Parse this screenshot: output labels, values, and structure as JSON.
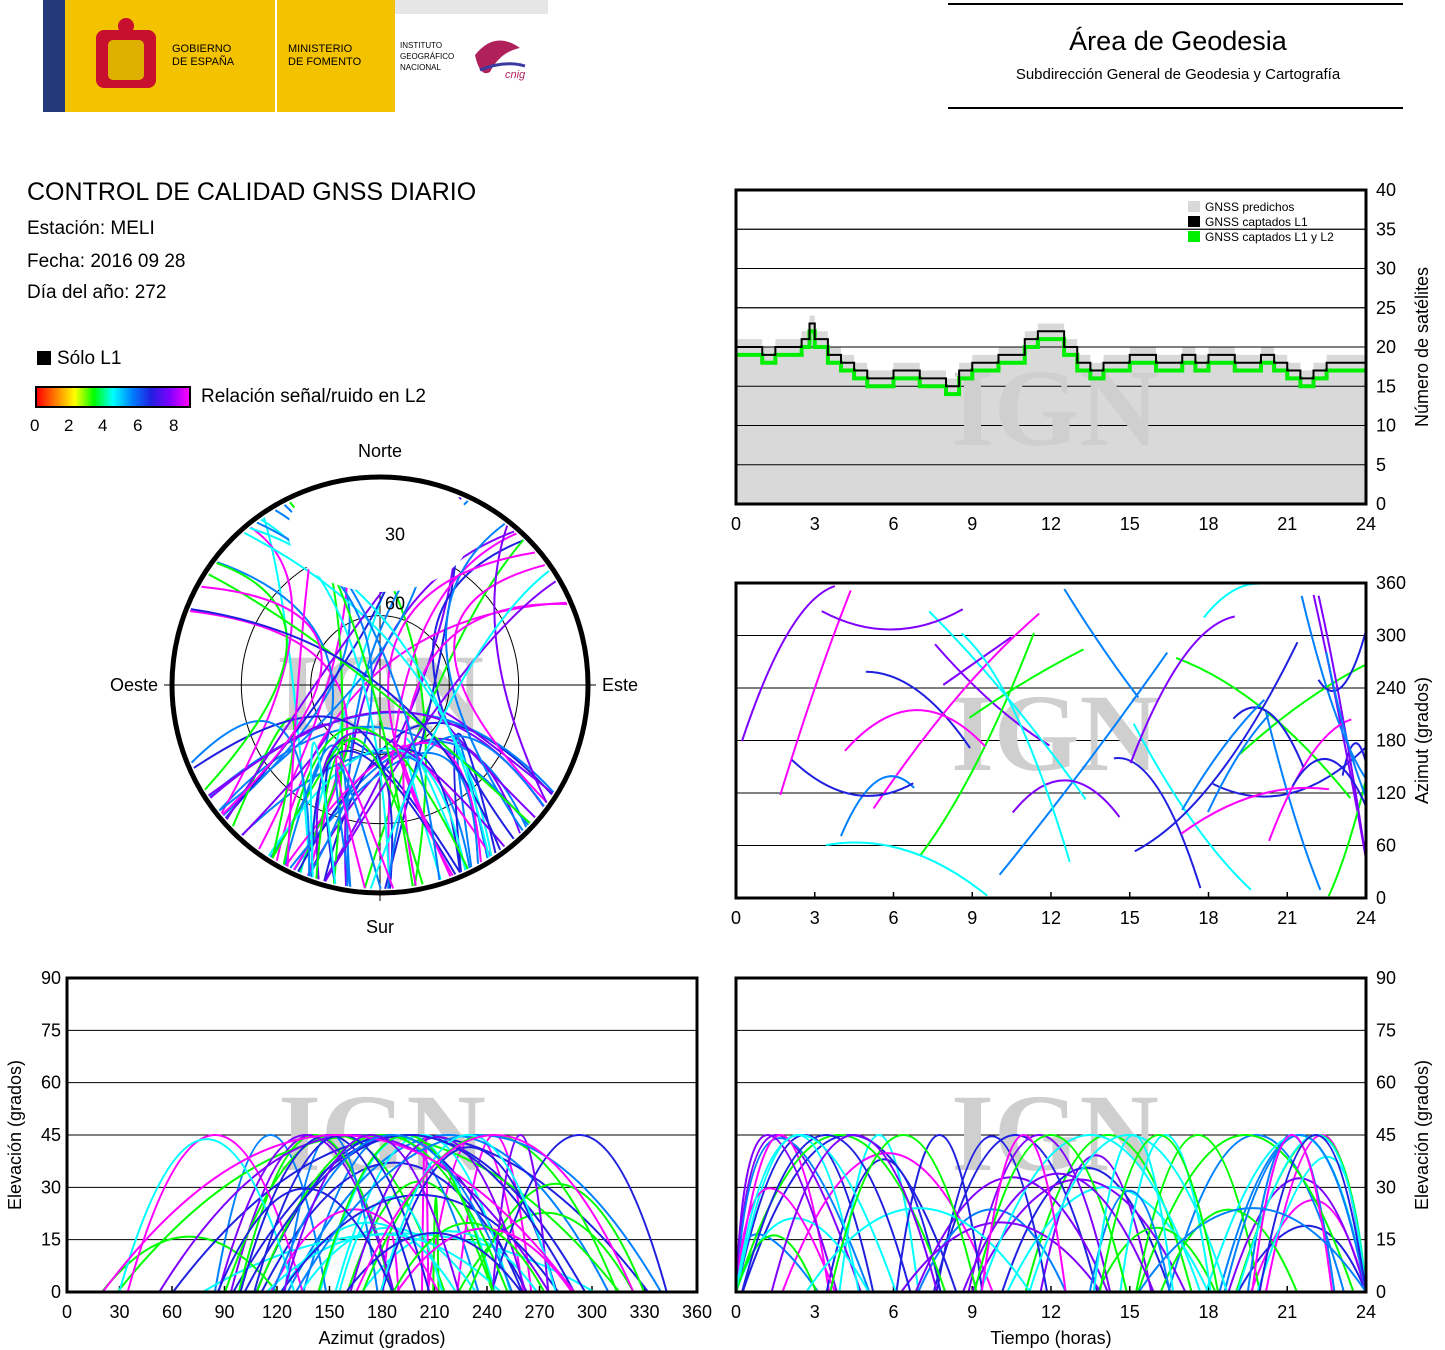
{
  "header": {
    "gov_line1": "GOBIERNO",
    "gov_line2": "DE ESPAÑA",
    "min_line1": "MINISTERIO",
    "min_line2": "DE FOMENTO",
    "ign_line1": "INSTITUTO",
    "ign_line2": "GEOGRÁFICO",
    "ign_line3": "NACIONAL",
    "cnig_logo_text": "cnig",
    "area_title": "Área de Geodesia",
    "area_subtitle": "Subdirección General de Geodesia y Cartografía"
  },
  "info": {
    "title": "CONTROL DE CALIDAD GNSS DIARIO",
    "station": "Estación: MELI",
    "date": "Fecha: 2016 09 28",
    "doy": "Día del año: 272"
  },
  "legend": {
    "l1_only": "Sólo L1",
    "snr_label": "Relación señal/ruido en L2",
    "snr_ticks": [
      "0",
      "2",
      "4",
      "6",
      "8"
    ]
  },
  "colors": {
    "predicted": "#d9d9d9",
    "l1": "#000000",
    "l1l2": "#00ee00",
    "snr_scale": [
      "#ff0000",
      "#ff8000",
      "#ffff00",
      "#00ff00",
      "#00ffff",
      "#0080ff",
      "#2020e0",
      "#8000ff",
      "#ff00ff"
    ]
  },
  "watermark": "IGN",
  "chart_data": [
    {
      "type": "polar",
      "id": "skyplot",
      "labels": {
        "north": "Norte",
        "south": "Sur",
        "east": "Este",
        "west": "Oeste"
      },
      "ring_labels": [
        "30",
        "60"
      ],
      "elevation_rings": [
        30,
        60
      ],
      "note_tracks": "satellite sky tracks; colour = L2 SNR; northern gap at elevation above ~35"
    },
    {
      "type": "area",
      "id": "satcount",
      "ylabel": "Número de satélites",
      "xlabel": "",
      "xlim": [
        0,
        24
      ],
      "ylim": [
        0,
        40
      ],
      "xticks": [
        "0",
        "3",
        "6",
        "9",
        "12",
        "15",
        "18",
        "21",
        "24"
      ],
      "yticks": [
        "0",
        "5",
        "10",
        "15",
        "20",
        "25",
        "30",
        "35",
        "40"
      ],
      "legend": [
        "GNSS predichos",
        "GNSS captados L1",
        "GNSS captados L1 y L2"
      ],
      "legend_position": "top-right",
      "grid": true,
      "x": [
        0,
        0.5,
        1,
        1.5,
        2,
        2.5,
        2.8,
        3,
        3.5,
        4,
        4.5,
        5,
        5.5,
        6,
        6.5,
        7,
        7.5,
        8,
        8.5,
        9,
        9.5,
        10,
        10.5,
        11,
        11.5,
        12,
        12.5,
        13,
        13.5,
        14,
        14.5,
        15,
        15.5,
        16,
        16.5,
        17,
        17.5,
        18,
        18.5,
        19,
        19.5,
        20,
        20.5,
        21,
        21.5,
        22,
        22.5,
        23,
        23.5,
        24
      ],
      "series": [
        {
          "name": "GNSS predichos",
          "values": [
            21,
            21,
            20,
            21,
            21,
            22,
            24,
            22,
            20,
            19,
            18,
            17,
            17,
            18,
            18,
            17,
            17,
            16,
            18,
            19,
            19,
            20,
            20,
            22,
            23,
            23,
            21,
            19,
            18,
            19,
            19,
            20,
            20,
            19,
            19,
            20,
            19,
            20,
            20,
            19,
            19,
            20,
            19,
            18,
            17,
            18,
            19,
            19,
            19,
            19
          ]
        },
        {
          "name": "GNSS captados L1",
          "values": [
            20,
            20,
            19,
            20,
            20,
            21,
            23,
            21,
            19,
            18,
            17,
            16,
            16,
            17,
            17,
            16,
            16,
            15,
            17,
            18,
            18,
            19,
            19,
            21,
            22,
            22,
            20,
            18,
            17,
            18,
            18,
            19,
            19,
            18,
            18,
            19,
            18,
            19,
            19,
            18,
            18,
            19,
            18,
            17,
            16,
            17,
            18,
            18,
            18,
            18
          ]
        },
        {
          "name": "GNSS captados L1 y L2",
          "values": [
            19,
            19,
            18,
            19,
            19,
            20,
            22,
            20,
            18,
            17,
            16,
            15,
            15,
            16,
            16,
            15,
            15,
            14,
            16,
            17,
            17,
            18,
            18,
            20,
            21,
            21,
            19,
            17,
            16,
            17,
            17,
            18,
            18,
            17,
            17,
            18,
            17,
            18,
            18,
            17,
            17,
            18,
            17,
            16,
            15,
            16,
            17,
            17,
            17,
            17
          ]
        }
      ]
    },
    {
      "type": "scatter",
      "id": "azimuth_time",
      "ylabel": "Azimut (grados)",
      "xlabel": "",
      "xlim": [
        0,
        24
      ],
      "ylim": [
        0,
        360
      ],
      "xticks": [
        "0",
        "3",
        "6",
        "9",
        "12",
        "15",
        "18",
        "21",
        "24"
      ],
      "yticks": [
        "0",
        "60",
        "120",
        "180",
        "240",
        "300",
        "360"
      ],
      "grid": true
    },
    {
      "type": "scatter",
      "id": "elev_azimuth",
      "xlabel": "Azimut (grados)",
      "ylabel": "Elevación (grados)",
      "xlim": [
        0,
        360
      ],
      "ylim": [
        0,
        90
      ],
      "xticks": [
        "0",
        "30",
        "60",
        "90",
        "120",
        "150",
        "180",
        "210",
        "240",
        "270",
        "300",
        "330",
        "360"
      ],
      "yticks": [
        "0",
        "15",
        "30",
        "45",
        "60",
        "75",
        "90"
      ],
      "grid": true
    },
    {
      "type": "scatter",
      "id": "elev_time",
      "xlabel": "Tiempo (horas)",
      "ylabel": "Elevación (grados)",
      "xlim": [
        0,
        24
      ],
      "ylim": [
        0,
        90
      ],
      "xticks": [
        "0",
        "3",
        "6",
        "9",
        "12",
        "15",
        "18",
        "21",
        "24"
      ],
      "yticks": [
        "0",
        "15",
        "30",
        "45",
        "60",
        "75",
        "90"
      ],
      "grid": true
    }
  ]
}
